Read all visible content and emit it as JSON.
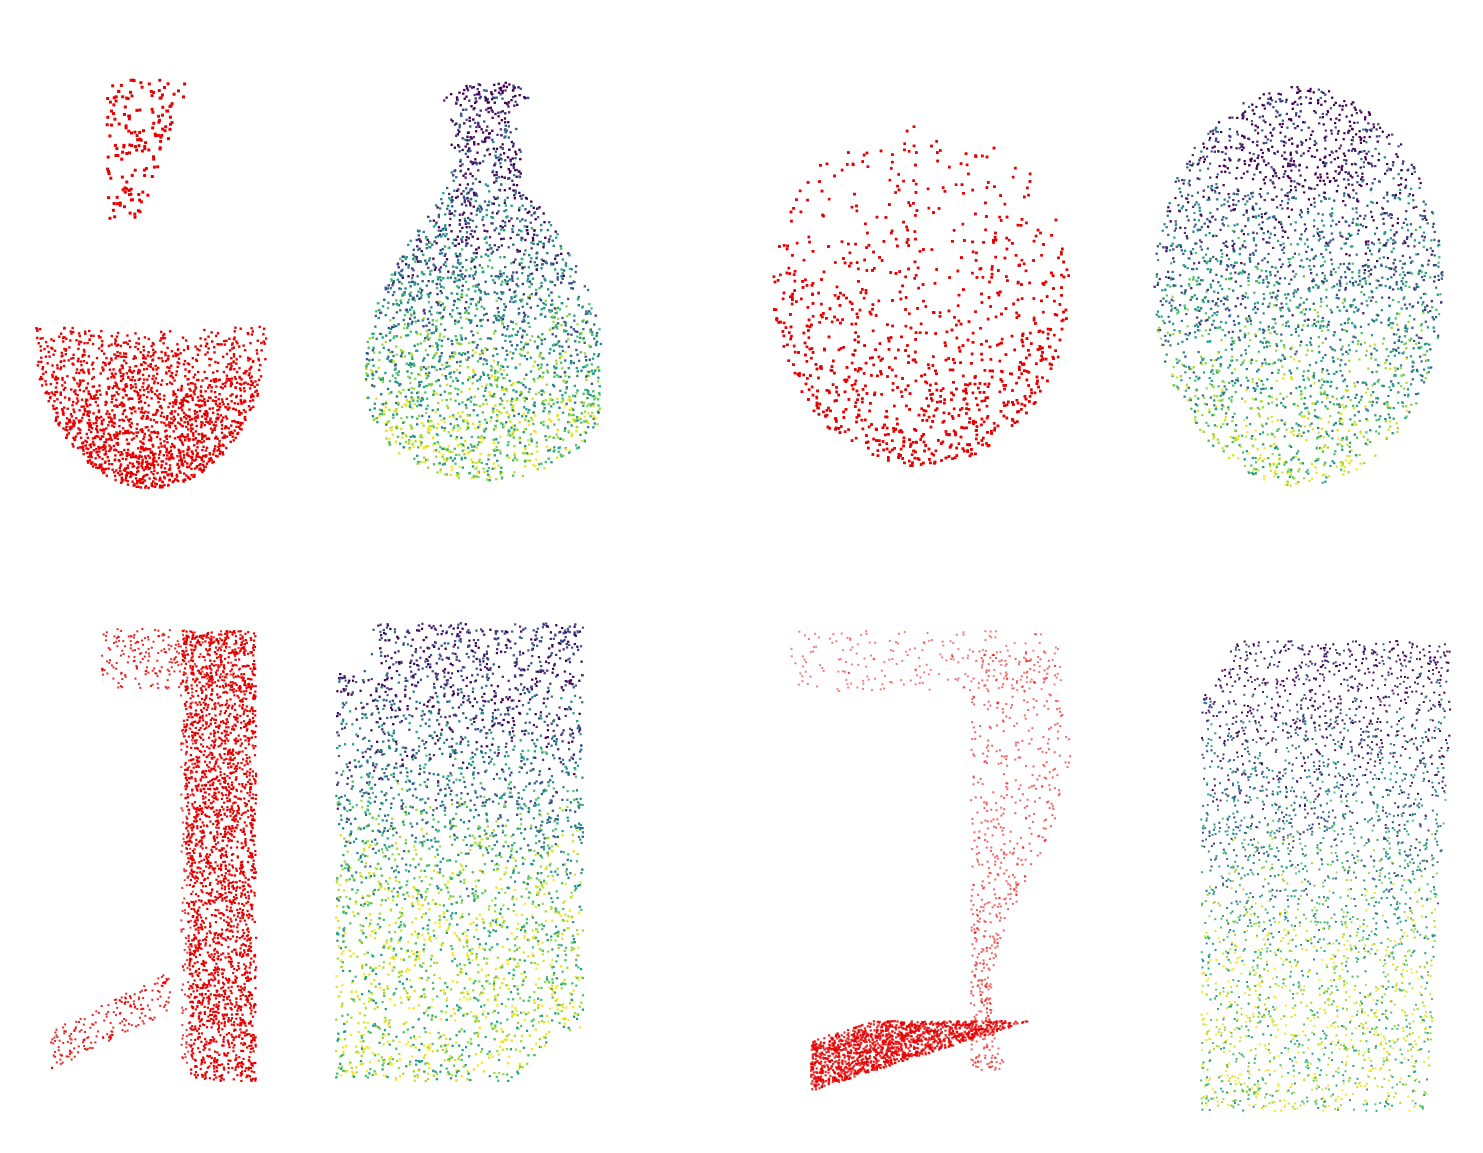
{
  "colors": {
    "partial": "#e60000",
    "viridis": [
      "#440154",
      "#46317e",
      "#365a8c",
      "#277e8e",
      "#1fa187",
      "#4ac26d",
      "#a0da39",
      "#dfe318",
      "#fde725"
    ]
  },
  "figure": {
    "rows": [
      {
        "pairs": [
          {
            "object": "bulb-shape",
            "input": "partial-point-cloud",
            "output": "completed-point-cloud"
          },
          {
            "object": "egg-shape",
            "input": "partial-point-cloud",
            "output": "completed-point-cloud"
          }
        ]
      },
      {
        "pairs": [
          {
            "object": "box-shape",
            "input": "partial-point-cloud",
            "output": "completed-point-cloud"
          },
          {
            "object": "block-shape",
            "input": "partial-point-cloud",
            "output": "completed-point-cloud"
          }
        ]
      }
    ]
  }
}
